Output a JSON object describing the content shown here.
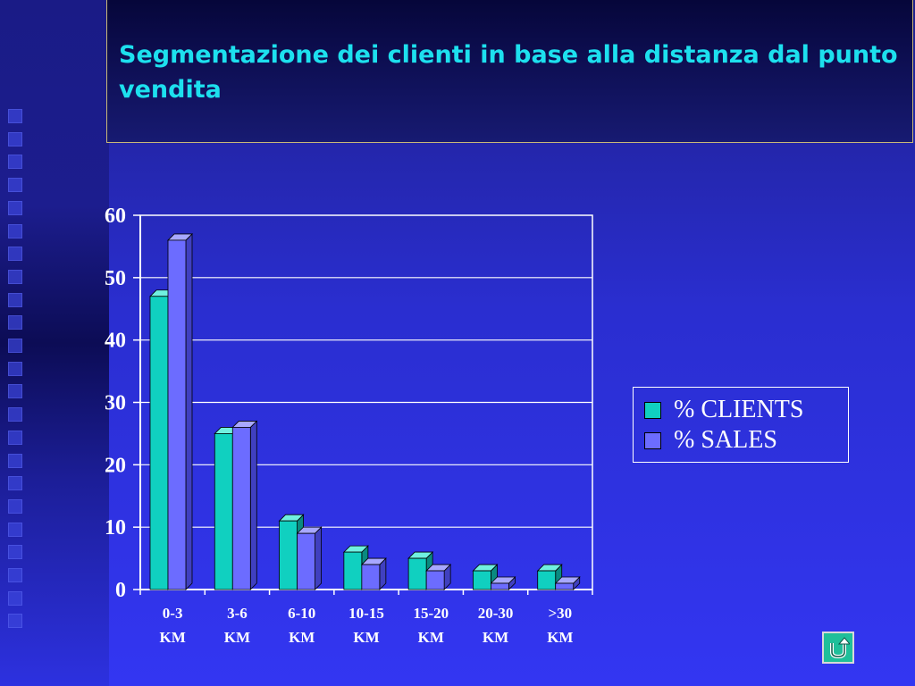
{
  "title": "Segmentazione dei clienti in base alla distanza dal punto vendita",
  "nav_icon": "return-arrow-icon",
  "colors": {
    "title": "#1de0ee",
    "clients": "#10d0c0",
    "sales": "#6c6cff",
    "background": "#3336f2"
  },
  "chart_data": {
    "type": "bar",
    "title": "",
    "xlabel": "",
    "ylabel": "",
    "ylim": [
      0,
      60
    ],
    "yticks": [
      "0",
      "10",
      "20",
      "30",
      "40",
      "50",
      "60"
    ],
    "grid": true,
    "legend_position": "right",
    "categories": [
      [
        "0-3",
        "KM"
      ],
      [
        "3-6",
        "KM"
      ],
      [
        "6-10",
        "KM"
      ],
      [
        "10-15",
        "KM"
      ],
      [
        "15-20",
        "KM"
      ],
      [
        "20-30",
        "KM"
      ],
      [
        ">30",
        "KM"
      ]
    ],
    "series": [
      {
        "name": "% CLIENTS",
        "values": [
          47,
          25,
          11,
          6,
          5,
          3,
          3
        ]
      },
      {
        "name": "% SALES",
        "values": [
          56,
          26,
          9,
          4,
          3,
          1,
          1
        ]
      }
    ]
  }
}
